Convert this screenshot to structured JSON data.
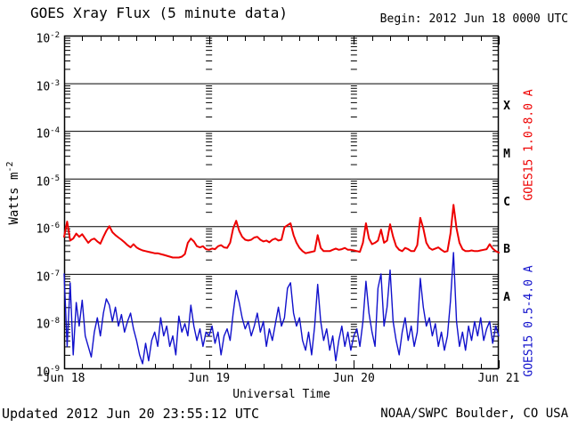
{
  "header": {
    "title": "GOES Xray Flux (5 minute data)",
    "begin_label": "Begin:  2012 Jun 18 0000 UTC"
  },
  "footer": {
    "updated": "Updated 2012 Jun 20 23:55:12 UTC",
    "source": "NOAA/SWPC Boulder, CO USA"
  },
  "colors": {
    "long_channel": "#ee0000",
    "short_channel": "#1111cc",
    "axis": "#000000",
    "background": "#ffffff"
  },
  "chart_data": {
    "type": "line",
    "title": "GOES Xray Flux (5 minute data)",
    "xlabel": "Universal Time",
    "ylabel": {
      "text": "Watts m",
      "sup": "-2"
    },
    "y_tick_base": "10",
    "y_tick_exponents": [
      -2,
      -3,
      -4,
      -5,
      -6,
      -7,
      -8,
      -9
    ],
    "ylim": [
      1e-09,
      0.01
    ],
    "y_scale": "log",
    "x_tick_labels": [
      "Jun 18",
      "Jun 19",
      "Jun 20",
      "Jun 21"
    ],
    "x_tick_hours": [
      0,
      24,
      48,
      72
    ],
    "x_minor_tick_hours": 3,
    "day_boundary_hours": [
      24,
      48
    ],
    "xlim_hours": [
      0,
      72
    ],
    "x_start_hours": 0,
    "x_step_hours": 0.5,
    "x_unit": "hours since 2012 Jun 18 0000 UTC",
    "grid": "solid horizontal line per decade; columns of log minor ticks at day boundaries",
    "legend_position": "right edge, rotated",
    "flare_classes": [
      {
        "label": "X",
        "between_exponents": [
          -4,
          -3
        ]
      },
      {
        "label": "M",
        "between_exponents": [
          -5,
          -4
        ]
      },
      {
        "label": "C",
        "between_exponents": [
          -6,
          -5
        ]
      },
      {
        "label": "B",
        "between_exponents": [
          -7,
          -6
        ]
      },
      {
        "label": "A",
        "between_exponents": [
          -8,
          -7
        ]
      }
    ],
    "series": [
      {
        "name": "GOES15 1.0-8.0 A",
        "color": "#ee0000",
        "values": [
          6e-07,
          1.25e-06,
          5e-07,
          5.5e-07,
          7e-07,
          6e-07,
          6.8e-07,
          5.5e-07,
          4.5e-07,
          5.2e-07,
          5.5e-07,
          4.8e-07,
          4.3e-07,
          6e-07,
          8e-07,
          1e-06,
          7.5e-07,
          6.5e-07,
          5.8e-07,
          5.2e-07,
          4.6e-07,
          4e-07,
          3.6e-07,
          4.2e-07,
          3.6e-07,
          3.3e-07,
          3.1e-07,
          3e-07,
          2.9e-07,
          2.8e-07,
          2.7e-07,
          2.7e-07,
          2.6e-07,
          2.5e-07,
          2.4e-07,
          2.3e-07,
          2.2e-07,
          2.2e-07,
          2.2e-07,
          2.3e-07,
          2.6e-07,
          4.5e-07,
          5.5e-07,
          4.8e-07,
          3.8e-07,
          3.6e-07,
          3.8e-07,
          3.3e-07,
          3.2e-07,
          3.4e-07,
          3.3e-07,
          3.8e-07,
          4e-07,
          3.6e-07,
          3.5e-07,
          4.5e-07,
          9e-07,
          1.3e-06,
          8e-07,
          6e-07,
          5.2e-07,
          5e-07,
          5.2e-07,
          5.8e-07,
          6e-07,
          5.2e-07,
          4.8e-07,
          5e-07,
          4.6e-07,
          5.2e-07,
          5.5e-07,
          5e-07,
          5.2e-07,
          9.5e-07,
          1.05e-06,
          1.15e-06,
          6.5e-07,
          4.5e-07,
          3.5e-07,
          3e-07,
          2.7e-07,
          2.8e-07,
          2.9e-07,
          3e-07,
          6.5e-07,
          3.5e-07,
          3e-07,
          3e-07,
          3e-07,
          3.2e-07,
          3.4e-07,
          3.2e-07,
          3.3e-07,
          3.5e-07,
          3.2e-07,
          3.2e-07,
          3.1e-07,
          3e-07,
          2.9e-07,
          4.5e-07,
          1.15e-06,
          5.5e-07,
          4.2e-07,
          4.5e-07,
          5e-07,
          8.5e-07,
          4.5e-07,
          5e-07,
          1.1e-06,
          6e-07,
          3.8e-07,
          3.2e-07,
          3e-07,
          3.5e-07,
          3.3e-07,
          3e-07,
          3e-07,
          4e-07,
          1.5e-06,
          9e-07,
          4.5e-07,
          3.5e-07,
          3.2e-07,
          3.4e-07,
          3.6e-07,
          3.2e-07,
          2.9e-07,
          3e-07,
          7e-07,
          2.8e-06,
          9e-07,
          4.5e-07,
          3.3e-07,
          3e-07,
          3e-07,
          3.1e-07,
          3e-07,
          3e-07,
          3.1e-07,
          3.2e-07,
          3.3e-07,
          4.2e-07,
          3.4e-07,
          3e-07,
          2.8e-07
        ]
      },
      {
        "name": "GOES15 0.5-4.0 A",
        "color": "#1111cc",
        "values": [
          1e-07,
          3e-09,
          6.5e-08,
          2e-09,
          2.5e-08,
          8e-09,
          2.8e-08,
          5e-09,
          3e-09,
          1.8e-09,
          6e-09,
          1.2e-08,
          5e-09,
          1.5e-08,
          3e-08,
          2.2e-08,
          1e-08,
          2e-08,
          8e-09,
          1.4e-08,
          6e-09,
          1e-08,
          1.5e-08,
          7e-09,
          4e-09,
          2e-09,
          1.3e-09,
          3.5e-09,
          1.5e-09,
          4e-09,
          6e-09,
          3e-09,
          1.2e-08,
          5e-09,
          8e-09,
          3e-09,
          5e-09,
          2e-09,
          1.3e-08,
          6e-09,
          9e-09,
          5e-09,
          2.2e-08,
          8e-09,
          4e-09,
          7e-09,
          3e-09,
          6e-09,
          5e-09,
          8e-09,
          3.5e-09,
          6e-09,
          2e-09,
          5e-09,
          7e-09,
          4e-09,
          1.5e-08,
          4.5e-08,
          2.5e-08,
          1.2e-08,
          7e-09,
          1e-08,
          5e-09,
          8e-09,
          1.5e-08,
          6e-09,
          1e-08,
          3e-09,
          7e-09,
          4e-09,
          9e-09,
          2e-08,
          8e-09,
          1.2e-08,
          5e-08,
          6.5e-08,
          1.5e-08,
          8e-09,
          1.2e-08,
          4e-09,
          2.5e-09,
          6e-09,
          2e-09,
          8e-09,
          6e-08,
          1e-08,
          4e-09,
          7e-09,
          2.5e-09,
          5e-09,
          1.5e-09,
          4e-09,
          8e-09,
          3e-09,
          6e-09,
          2.5e-09,
          5e-09,
          7e-09,
          3e-09,
          1e-08,
          7e-08,
          1.5e-08,
          6e-09,
          3e-09,
          5e-08,
          1e-07,
          8e-09,
          2e-08,
          1.2e-07,
          1e-08,
          4e-09,
          2e-09,
          6e-09,
          1.2e-08,
          4e-09,
          8e-09,
          3e-09,
          6e-09,
          8e-08,
          2e-08,
          8e-09,
          1.2e-08,
          5e-09,
          9e-09,
          3e-09,
          6e-09,
          2.5e-09,
          5e-09,
          2.7e-08,
          2.8e-07,
          1e-08,
          3e-09,
          6e-09,
          2.5e-09,
          8e-09,
          4e-09,
          1e-08,
          5e-09,
          1.2e-08,
          4e-09,
          7e-09,
          1e-08,
          3.5e-09,
          8e-09,
          5e-09
        ]
      }
    ]
  }
}
